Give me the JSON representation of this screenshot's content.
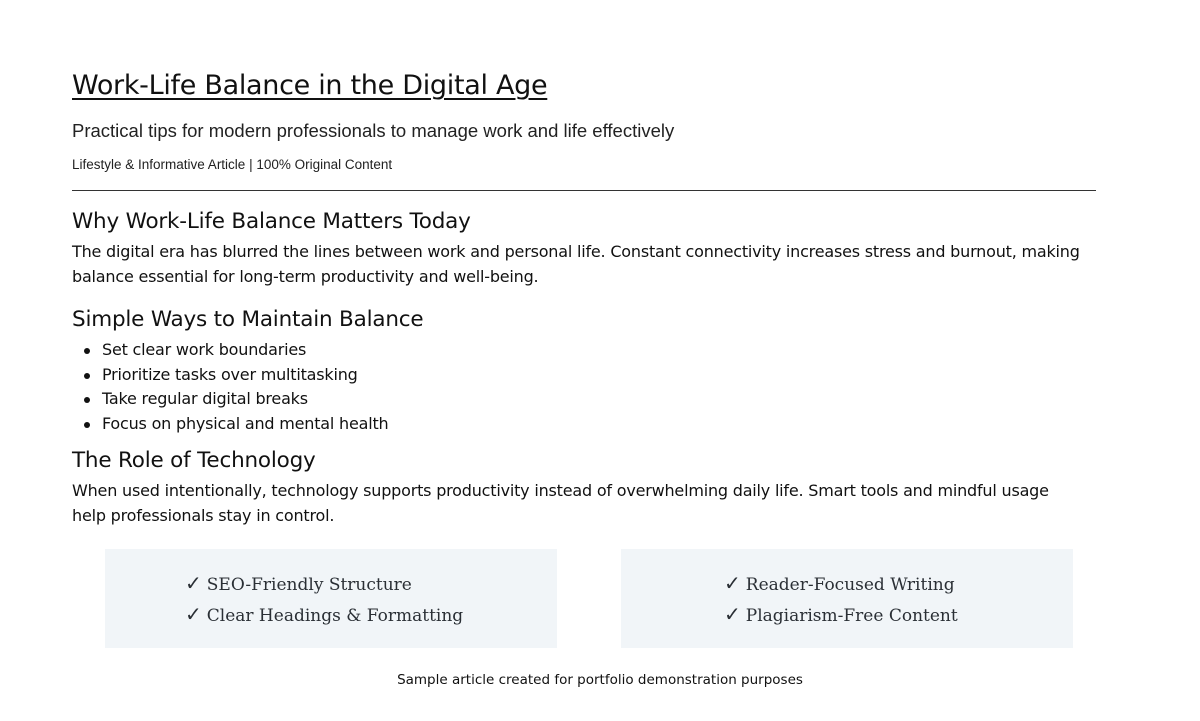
{
  "header": {
    "title": "Work-Life Balance in the Digital Age",
    "subtitle": "Practical tips for modern professionals to manage work and life effectively",
    "meta": "Lifestyle & Informative Article | 100% Original Content"
  },
  "sections": [
    {
      "heading": "Why Work-Life Balance Matters Today",
      "body": "The digital era has blurred the lines between work and personal life. Constant connectivity increases stress and burnout, making balance essential for long-term productivity and well-being."
    },
    {
      "heading": "Simple Ways to Maintain Balance",
      "items": [
        "Set clear work boundaries",
        "Prioritize tasks over multitasking",
        "Take regular digital breaks",
        "Focus on physical and mental health"
      ]
    },
    {
      "heading": "The Role of Technology",
      "body": "When used intentionally, technology supports productivity instead of overwhelming daily life. Smart tools and mindful usage help professionals stay in control."
    }
  ],
  "features": {
    "icon": "checkmark-icon",
    "check": "✓",
    "left": [
      "SEO-Friendly Structure",
      "Clear Headings & Formatting"
    ],
    "right": [
      "Reader-Focused Writing",
      "Plagiarism-Free Content"
    ],
    "box_color": "#f1f5f8"
  },
  "footer": "Sample article created for portfolio demonstration purposes"
}
